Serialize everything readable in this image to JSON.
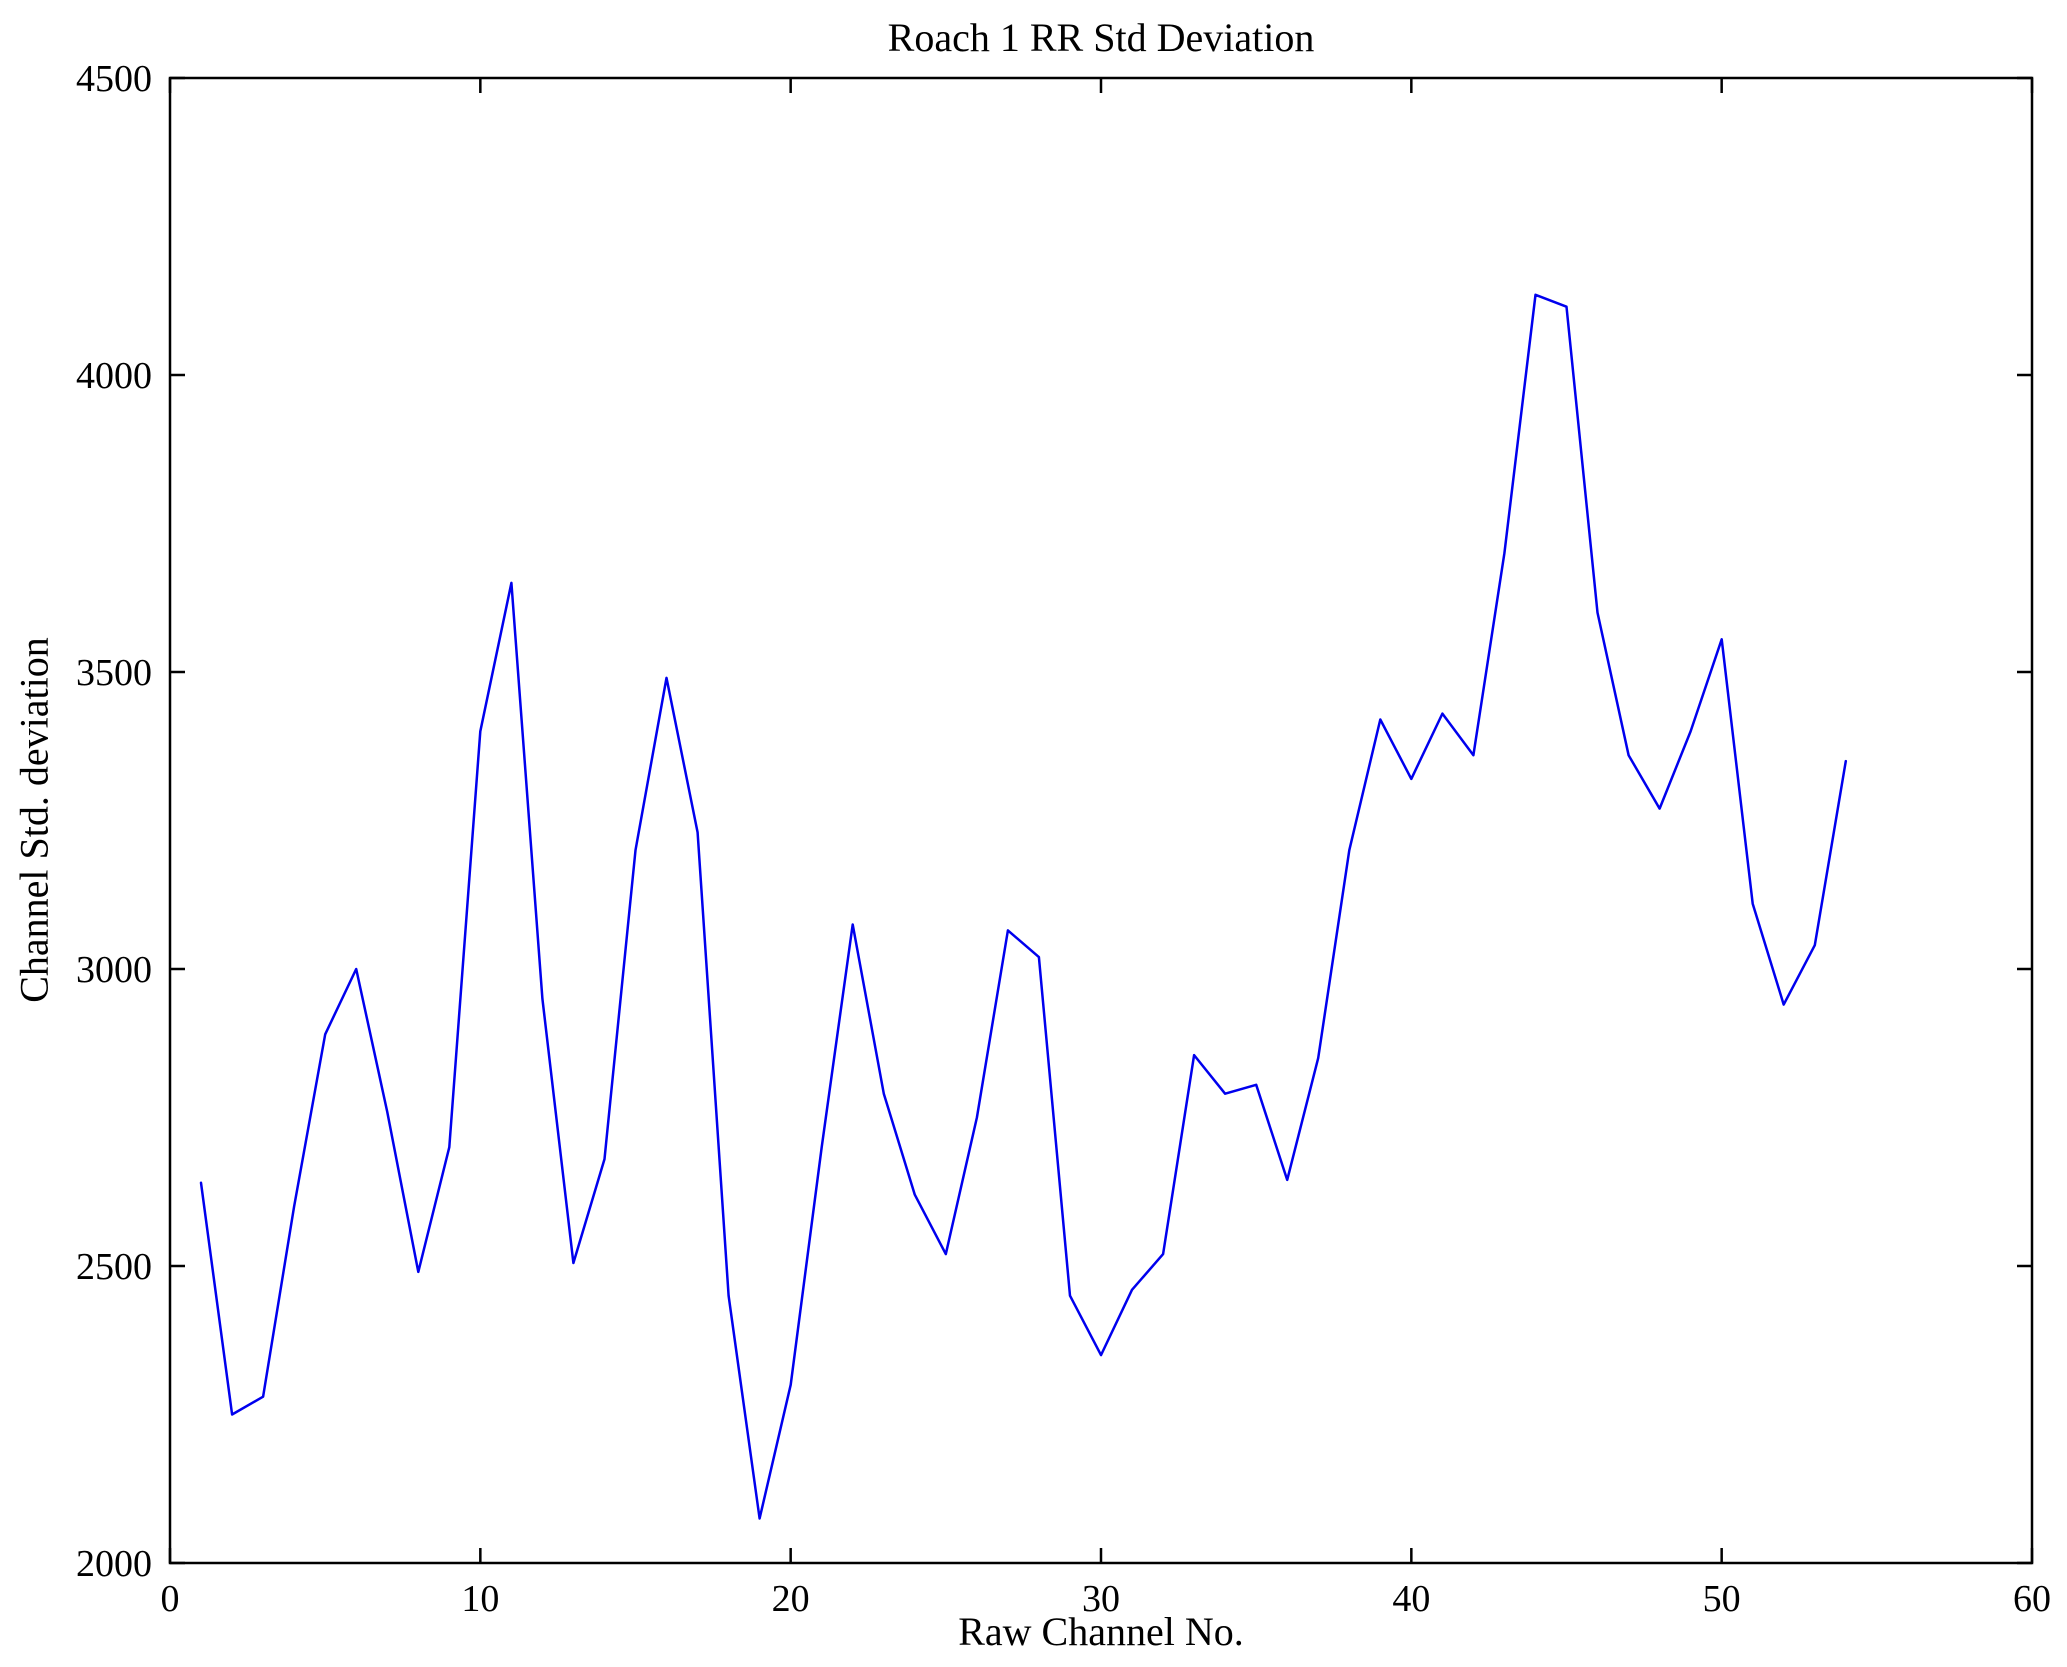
{
  "chart_data": {
    "type": "line",
    "title": "Roach 1 RR Std Deviation",
    "xlabel": "Raw Channel No.",
    "ylabel": "Channel Std. deviation",
    "xlim": [
      0,
      60
    ],
    "ylim": [
      2000,
      4500
    ],
    "xticks": [
      0,
      10,
      20,
      30,
      40,
      50,
      60
    ],
    "yticks": [
      2000,
      2500,
      3000,
      3500,
      4000,
      4500
    ],
    "grid": false,
    "legend": "none",
    "line_color": "#0000ee",
    "axis_color": "#000000",
    "series": [
      {
        "name": "Channel Std deviation",
        "x": [
          1,
          2,
          3,
          4,
          5,
          6,
          7,
          8,
          9,
          10,
          11,
          12,
          13,
          14,
          15,
          16,
          17,
          18,
          19,
          20,
          21,
          22,
          23,
          24,
          25,
          26,
          27,
          28,
          29,
          30,
          31,
          32,
          33,
          34,
          35,
          36,
          37,
          38,
          39,
          40,
          41,
          42,
          43,
          44,
          45,
          46,
          47,
          48,
          49,
          50,
          51,
          52,
          53,
          54
        ],
        "y": [
          2640,
          2250,
          2280,
          2600,
          2890,
          3000,
          2760,
          2490,
          2700,
          3400,
          3650,
          2950,
          2505,
          2680,
          3200,
          3490,
          3230,
          2450,
          2075,
          2300,
          2700,
          3075,
          2790,
          2620,
          2520,
          2750,
          3065,
          3020,
          2450,
          2350,
          2460,
          2520,
          2855,
          2790,
          2805,
          2645,
          2850,
          3200,
          3420,
          3320,
          3430,
          3360,
          3700,
          4135,
          4115,
          3600,
          3360,
          3270,
          3400,
          3555,
          3110,
          2940,
          3040,
          3350
        ]
      }
    ]
  }
}
